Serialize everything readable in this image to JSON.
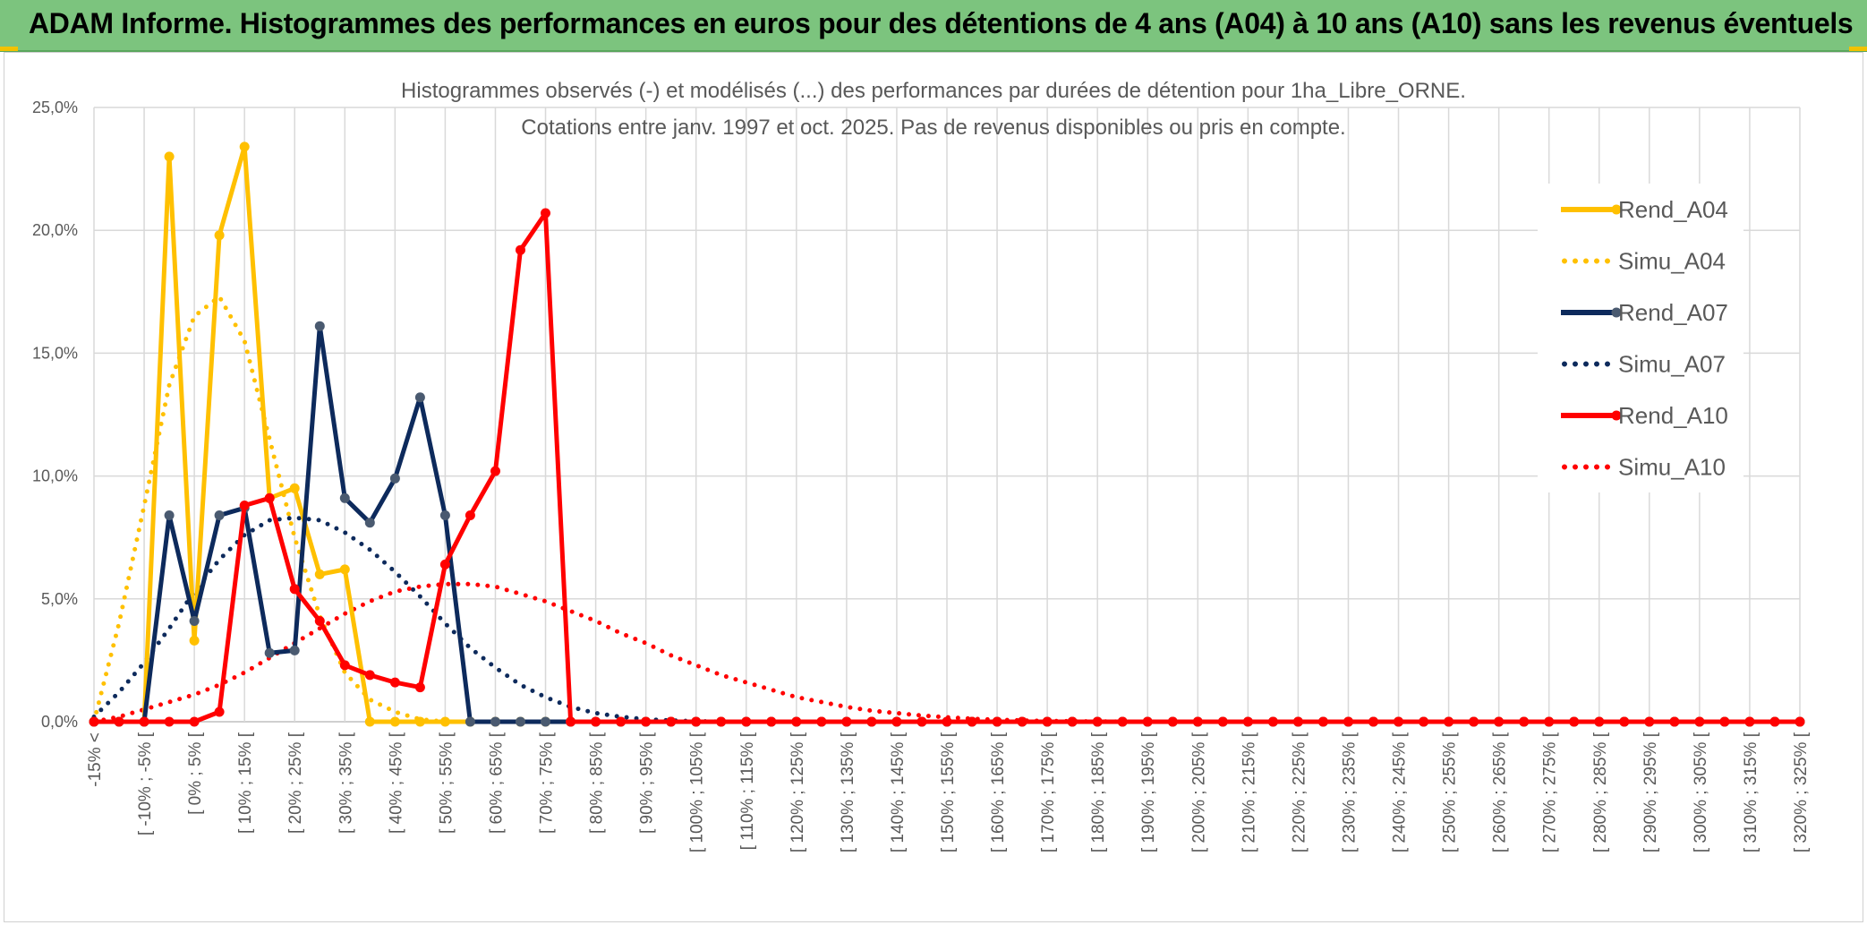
{
  "header": {
    "title": "ADAM Informe. Histogrammes des performances en euros pour des détentions de 4 ans (A04) à 10 ans (A10) sans les revenus éventuels"
  },
  "colors": {
    "banner": "#7cc47e",
    "a04": "#ffc000",
    "a07": "#0d2a5c",
    "a07_marker": "#4a5a70",
    "a10": "#ff0000",
    "grid": "#d9d9d9",
    "text": "#595959"
  },
  "chart_data": {
    "type": "line",
    "title": "Histogrammes observés (-) et modélisés (...) des performances par durées de détention pour 1ha_Libre_ORNE.",
    "subtitle": "Cotations entre janv. 1997 et oct. 2025. Pas de revenus disponibles ou pris en compte.",
    "xlabel": "",
    "ylabel": "",
    "ylim": [
      0,
      25
    ],
    "y_ticks": [
      "0,0%",
      "5,0%",
      "10,0%",
      "15,0%",
      "20,0%",
      "25,0%"
    ],
    "grid": true,
    "legend_position": "right",
    "categories": [
      "-15% <",
      "[ -10% ; -5% [",
      "[ 0% ; 5% [",
      "[ 10% ; 15% [",
      "[ 20% ; 25% [",
      "[ 30% ; 35% [",
      "[ 40% ; 45% [",
      "[ 50% ; 55% [",
      "[ 60% ; 65% [",
      "[ 70% ; 75% [",
      "[ 80% ; 85% [",
      "[ 90% ; 95% [",
      "[ 100% ; 105% [",
      "[ 110% ; 115% [",
      "[ 120% ; 125% [",
      "[ 130% ; 135% [",
      "[ 140% ; 145% [",
      "[ 150% ; 155% [",
      "[ 160% ; 165% [",
      "[ 170% ; 175% [",
      "[ 180% ; 185% [",
      "[ 190% ; 195% [",
      "[ 200% ; 205% [",
      "[ 210% ; 215% [",
      "[ 220% ; 225% [",
      "[ 230% ; 235% [",
      "[ 240% ; 245% [",
      "[ 250% ; 255% [",
      "[ 260% ; 265% [",
      "[ 270% ; 275% [",
      "[ 280% ; 285% [",
      "[ 290% ; 295% [",
      "[ 300% ; 305% [",
      "[ 310% ; 315% [",
      "[ 320% ; 325% ["
    ],
    "x_start": -15,
    "x_step": 5,
    "x_count": 69,
    "series": [
      {
        "name": "Rend_A04",
        "style": "solid",
        "color": "#ffc000",
        "points": [
          [
            -15,
            0
          ],
          [
            -10,
            0
          ],
          [
            -5,
            0
          ],
          [
            0,
            23.0
          ],
          [
            5,
            3.3
          ],
          [
            10,
            19.8
          ],
          [
            15,
            23.4
          ],
          [
            20,
            9.1
          ],
          [
            25,
            9.5
          ],
          [
            30,
            6.0
          ],
          [
            35,
            6.2
          ],
          [
            40,
            0
          ],
          [
            45,
            0
          ],
          [
            50,
            0
          ],
          [
            55,
            0
          ]
        ]
      },
      {
        "name": "Simu_A04",
        "style": "dotted",
        "color": "#ffc000",
        "points": [
          [
            -15,
            0
          ],
          [
            -10,
            4.0
          ],
          [
            -5,
            8.8
          ],
          [
            0,
            13.7
          ],
          [
            5,
            16.5
          ],
          [
            10,
            17.3
          ],
          [
            15,
            15.5
          ],
          [
            20,
            11.5
          ],
          [
            25,
            7.5
          ],
          [
            30,
            4.3
          ],
          [
            35,
            2.0
          ],
          [
            40,
            0.9
          ],
          [
            45,
            0.4
          ],
          [
            50,
            0.1
          ],
          [
            55,
            0
          ]
        ]
      },
      {
        "name": "Rend_A07",
        "style": "solid",
        "color": "#0d2a5c",
        "points": [
          [
            -15,
            0
          ],
          [
            -10,
            0
          ],
          [
            -5,
            0
          ],
          [
            0,
            8.4
          ],
          [
            5,
            4.1
          ],
          [
            10,
            8.4
          ],
          [
            15,
            8.7
          ],
          [
            20,
            2.8
          ],
          [
            25,
            2.9
          ],
          [
            30,
            16.1
          ],
          [
            35,
            9.1
          ],
          [
            40,
            8.1
          ],
          [
            45,
            9.9
          ],
          [
            50,
            13.2
          ],
          [
            55,
            8.4
          ],
          [
            60,
            0
          ],
          [
            65,
            0
          ],
          [
            70,
            0
          ],
          [
            75,
            0
          ]
        ]
      },
      {
        "name": "Simu_A07",
        "style": "dotted",
        "color": "#0d2a5c",
        "points": [
          [
            -15,
            0.2
          ],
          [
            -10,
            1.2
          ],
          [
            -5,
            2.4
          ],
          [
            0,
            3.8
          ],
          [
            5,
            5.3
          ],
          [
            10,
            6.6
          ],
          [
            15,
            7.6
          ],
          [
            20,
            8.2
          ],
          [
            25,
            8.3
          ],
          [
            30,
            8.2
          ],
          [
            35,
            7.7
          ],
          [
            40,
            7.0
          ],
          [
            45,
            6.1
          ],
          [
            50,
            5.1
          ],
          [
            55,
            4.0
          ],
          [
            60,
            3.0
          ],
          [
            65,
            2.2
          ],
          [
            70,
            1.5
          ],
          [
            75,
            1.0
          ],
          [
            80,
            0.6
          ],
          [
            85,
            0.35
          ],
          [
            90,
            0.2
          ],
          [
            95,
            0.1
          ],
          [
            100,
            0.05
          ],
          [
            105,
            0.02
          ],
          [
            110,
            0
          ]
        ]
      },
      {
        "name": "Rend_A10",
        "style": "solid",
        "color": "#ff0000",
        "points": [
          [
            -15,
            0
          ],
          [
            -10,
            0
          ],
          [
            -5,
            0
          ],
          [
            0,
            0
          ],
          [
            5,
            0
          ],
          [
            10,
            0.4
          ],
          [
            15,
            8.8
          ],
          [
            20,
            9.1
          ],
          [
            25,
            5.4
          ],
          [
            30,
            4.1
          ],
          [
            35,
            2.3
          ],
          [
            40,
            1.9
          ],
          [
            45,
            1.6
          ],
          [
            50,
            1.4
          ],
          [
            55,
            6.4
          ],
          [
            60,
            8.4
          ],
          [
            65,
            10.2
          ],
          [
            70,
            19.2
          ],
          [
            75,
            20.7
          ],
          [
            80,
            0
          ]
        ]
      },
      {
        "name": "Simu_A10",
        "style": "dotted",
        "color": "#ff0000",
        "points": [
          [
            -15,
            0
          ],
          [
            -10,
            0.2
          ],
          [
            -5,
            0.5
          ],
          [
            0,
            0.8
          ],
          [
            5,
            1.1
          ],
          [
            10,
            1.5
          ],
          [
            15,
            2.0
          ],
          [
            20,
            2.6
          ],
          [
            25,
            3.2
          ],
          [
            30,
            3.8
          ],
          [
            35,
            4.4
          ],
          [
            40,
            4.9
          ],
          [
            45,
            5.3
          ],
          [
            50,
            5.5
          ],
          [
            55,
            5.6
          ],
          [
            60,
            5.6
          ],
          [
            65,
            5.5
          ],
          [
            70,
            5.2
          ],
          [
            75,
            4.9
          ],
          [
            80,
            4.5
          ],
          [
            85,
            4.1
          ],
          [
            90,
            3.6
          ],
          [
            95,
            3.2
          ],
          [
            100,
            2.7
          ],
          [
            105,
            2.3
          ],
          [
            110,
            1.9
          ],
          [
            115,
            1.6
          ],
          [
            120,
            1.3
          ],
          [
            125,
            1.0
          ],
          [
            130,
            0.8
          ],
          [
            135,
            0.6
          ],
          [
            140,
            0.45
          ],
          [
            145,
            0.35
          ],
          [
            150,
            0.25
          ],
          [
            155,
            0.18
          ],
          [
            160,
            0.12
          ],
          [
            165,
            0.08
          ],
          [
            170,
            0.05
          ],
          [
            175,
            0.03
          ],
          [
            180,
            0.02
          ],
          [
            185,
            0.01
          ],
          [
            190,
            0
          ]
        ]
      }
    ]
  }
}
